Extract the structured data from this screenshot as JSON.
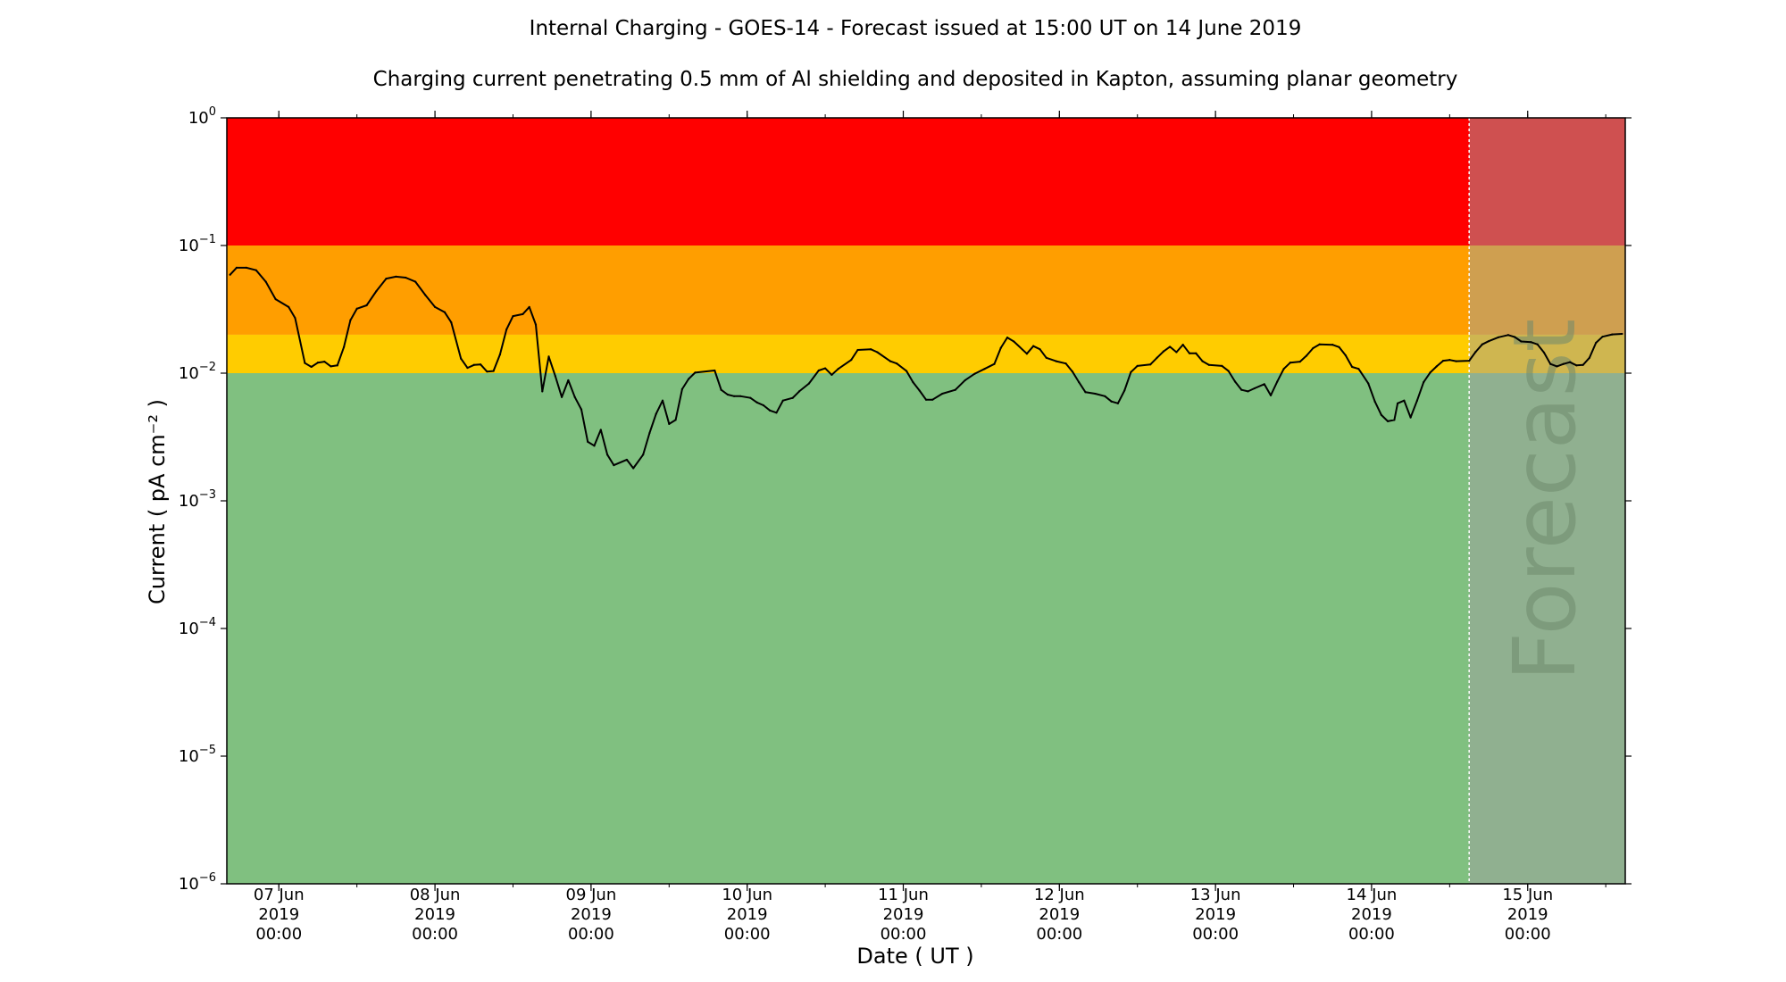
{
  "chart_data": {
    "type": "line",
    "title": "Internal Charging - GOES-14 - Forecast issued at 15:00 UT on 14 June 2019",
    "subtitle": "Charging current penetrating 0.5 mm of Al shielding and deposited in Kapton, assuming planar geometry",
    "xlabel": "Date ( UT )",
    "ylabel": "Current ( pA cm⁻² )",
    "yscale": "log",
    "ylim": [
      1e-06,
      1
    ],
    "xlim": [
      "2019-06-06T16:00",
      "2019-06-15T15:00"
    ],
    "yticks": [
      {
        "value": 1e-06,
        "base": "10",
        "exp": "−6"
      },
      {
        "value": 1e-05,
        "base": "10",
        "exp": "−5"
      },
      {
        "value": 0.0001,
        "base": "10",
        "exp": "−4"
      },
      {
        "value": 0.001,
        "base": "10",
        "exp": "−3"
      },
      {
        "value": 0.01,
        "base": "10",
        "exp": "−2"
      },
      {
        "value": 0.1,
        "base": "10",
        "exp": "−1"
      },
      {
        "value": 1,
        "base": "10",
        "exp": "0"
      }
    ],
    "xticks": [
      {
        "date": "2019-06-07T00:00",
        "lines": [
          "07 Jun",
          "2019",
          "00:00"
        ]
      },
      {
        "date": "2019-06-08T00:00",
        "lines": [
          "08 Jun",
          "2019",
          "00:00"
        ]
      },
      {
        "date": "2019-06-09T00:00",
        "lines": [
          "09 Jun",
          "2019",
          "00:00"
        ]
      },
      {
        "date": "2019-06-10T00:00",
        "lines": [
          "10 Jun",
          "2019",
          "00:00"
        ]
      },
      {
        "date": "2019-06-11T00:00",
        "lines": [
          "11 Jun",
          "2019",
          "00:00"
        ]
      },
      {
        "date": "2019-06-12T00:00",
        "lines": [
          "12 Jun",
          "2019",
          "00:00"
        ]
      },
      {
        "date": "2019-06-13T00:00",
        "lines": [
          "13 Jun",
          "2019",
          "00:00"
        ]
      },
      {
        "date": "2019-06-14T00:00",
        "lines": [
          "14 Jun",
          "2019",
          "00:00"
        ]
      },
      {
        "date": "2019-06-15T00:00",
        "lines": [
          "15 Jun",
          "2019",
          "00:00"
        ]
      }
    ],
    "bands": [
      {
        "from": 0.1,
        "to": 1,
        "color": "#ff0000"
      },
      {
        "from": 0.02,
        "to": 0.1,
        "color": "#ff9e00"
      },
      {
        "from": 0.01,
        "to": 0.02,
        "color": "#ffcc00"
      },
      {
        "from": 1e-06,
        "to": 0.01,
        "color": "#80c080"
      }
    ],
    "forecast": {
      "start": "2019-06-14T15:00",
      "label": "Forecast",
      "overlay_color": "#a0a0a0"
    },
    "series": [
      {
        "color": "#000000",
        "points": [
          [
            "2019-06-06T16:30",
            0.059
          ],
          [
            "2019-06-06T17:30",
            0.067
          ],
          [
            "2019-06-06T19:00",
            0.067
          ],
          [
            "2019-06-06T20:30",
            0.064
          ],
          [
            "2019-06-06T22:00",
            0.052
          ],
          [
            "2019-06-06T23:30",
            0.038
          ],
          [
            "2019-06-07T01:30",
            0.033
          ],
          [
            "2019-06-07T02:30",
            0.027
          ],
          [
            "2019-06-07T04:00",
            0.012
          ],
          [
            "2019-06-07T05:00",
            0.0112
          ],
          [
            "2019-06-07T06:00",
            0.0121
          ],
          [
            "2019-06-07T07:00",
            0.0123
          ],
          [
            "2019-06-07T08:00",
            0.0113
          ],
          [
            "2019-06-07T09:00",
            0.0115
          ],
          [
            "2019-06-07T10:00",
            0.016
          ],
          [
            "2019-06-07T11:00",
            0.026
          ],
          [
            "2019-06-07T12:00",
            0.032
          ],
          [
            "2019-06-07T13:30",
            0.034
          ],
          [
            "2019-06-07T15:00",
            0.044
          ],
          [
            "2019-06-07T16:30",
            0.055
          ],
          [
            "2019-06-07T18:00",
            0.057
          ],
          [
            "2019-06-07T19:30",
            0.056
          ],
          [
            "2019-06-07T21:00",
            0.052
          ],
          [
            "2019-06-07T22:30",
            0.041
          ],
          [
            "2019-06-08T00:00",
            0.033
          ],
          [
            "2019-06-08T01:30",
            0.03
          ],
          [
            "2019-06-08T02:30",
            0.025
          ],
          [
            "2019-06-08T04:00",
            0.013
          ],
          [
            "2019-06-08T05:00",
            0.011
          ],
          [
            "2019-06-08T06:00",
            0.0116
          ],
          [
            "2019-06-08T07:00",
            0.0117
          ],
          [
            "2019-06-08T08:00",
            0.0103
          ],
          [
            "2019-06-08T09:00",
            0.0104
          ],
          [
            "2019-06-08T10:00",
            0.014
          ],
          [
            "2019-06-08T11:00",
            0.022
          ],
          [
            "2019-06-08T12:00",
            0.028
          ],
          [
            "2019-06-08T13:30",
            0.029
          ],
          [
            "2019-06-08T14:30",
            0.033
          ],
          [
            "2019-06-08T15:30",
            0.024
          ],
          [
            "2019-06-08T16:30",
            0.0072
          ],
          [
            "2019-06-08T17:30",
            0.0135
          ],
          [
            "2019-06-08T18:30",
            0.0095
          ],
          [
            "2019-06-08T19:30",
            0.0065
          ],
          [
            "2019-06-08T20:30",
            0.0088
          ],
          [
            "2019-06-08T21:30",
            0.0065
          ],
          [
            "2019-06-08T22:30",
            0.0052
          ],
          [
            "2019-06-08T23:30",
            0.0029
          ],
          [
            "2019-06-09T00:30",
            0.0027
          ],
          [
            "2019-06-09T01:30",
            0.0036
          ],
          [
            "2019-06-09T02:30",
            0.0023
          ],
          [
            "2019-06-09T03:30",
            0.0019
          ],
          [
            "2019-06-09T05:30",
            0.0021
          ],
          [
            "2019-06-09T06:30",
            0.0018
          ],
          [
            "2019-06-09T08:00",
            0.0023
          ],
          [
            "2019-06-09T09:00",
            0.0034
          ],
          [
            "2019-06-09T10:00",
            0.0048
          ],
          [
            "2019-06-09T11:00",
            0.0061
          ],
          [
            "2019-06-09T12:00",
            0.004
          ],
          [
            "2019-06-09T13:00",
            0.0043
          ],
          [
            "2019-06-09T14:00",
            0.0075
          ],
          [
            "2019-06-09T15:00",
            0.009
          ],
          [
            "2019-06-09T16:00",
            0.0101
          ],
          [
            "2019-06-09T19:00",
            0.0105
          ],
          [
            "2019-06-09T20:00",
            0.0074
          ],
          [
            "2019-06-09T21:00",
            0.0068
          ],
          [
            "2019-06-09T22:00",
            0.0066
          ],
          [
            "2019-06-09T23:00",
            0.0066
          ],
          [
            "2019-06-10T00:30",
            0.0064
          ],
          [
            "2019-06-10T01:30",
            0.0059
          ],
          [
            "2019-06-10T02:30",
            0.0056
          ],
          [
            "2019-06-10T03:30",
            0.0051
          ],
          [
            "2019-06-10T04:30",
            0.0049
          ],
          [
            "2019-06-10T05:30",
            0.0061
          ],
          [
            "2019-06-10T07:00",
            0.0064
          ],
          [
            "2019-06-10T08:00",
            0.0072
          ],
          [
            "2019-06-10T09:30",
            0.0083
          ],
          [
            "2019-06-10T11:00",
            0.0105
          ],
          [
            "2019-06-10T12:00",
            0.0109
          ],
          [
            "2019-06-10T13:00",
            0.0097
          ],
          [
            "2019-06-10T14:00",
            0.0108
          ],
          [
            "2019-06-10T16:00",
            0.0127
          ],
          [
            "2019-06-10T17:00",
            0.0152
          ],
          [
            "2019-06-10T19:00",
            0.0154
          ],
          [
            "2019-06-10T20:00",
            0.0146
          ],
          [
            "2019-06-10T22:00",
            0.0124
          ],
          [
            "2019-06-10T23:00",
            0.0119
          ],
          [
            "2019-06-11T00:30",
            0.0104
          ],
          [
            "2019-06-11T01:30",
            0.0085
          ],
          [
            "2019-06-11T02:30",
            0.0073
          ],
          [
            "2019-06-11T03:30",
            0.0062
          ],
          [
            "2019-06-11T04:30",
            0.0062
          ],
          [
            "2019-06-11T06:00",
            0.0069
          ],
          [
            "2019-06-11T08:00",
            0.0074
          ],
          [
            "2019-06-11T09:30",
            0.0088
          ],
          [
            "2019-06-11T11:00",
            0.0099
          ],
          [
            "2019-06-11T12:30",
            0.0108
          ],
          [
            "2019-06-11T14:00",
            0.0118
          ],
          [
            "2019-06-11T15:00",
            0.0158
          ],
          [
            "2019-06-11T16:00",
            0.019
          ],
          [
            "2019-06-11T17:00",
            0.0177
          ],
          [
            "2019-06-11T19:00",
            0.0142
          ],
          [
            "2019-06-11T20:00",
            0.0163
          ],
          [
            "2019-06-11T21:00",
            0.0154
          ],
          [
            "2019-06-11T22:00",
            0.0132
          ],
          [
            "2019-06-11T23:30",
            0.0124
          ],
          [
            "2019-06-12T01:00",
            0.0119
          ],
          [
            "2019-06-12T02:00",
            0.0103
          ],
          [
            "2019-06-12T03:00",
            0.0085
          ],
          [
            "2019-06-12T04:00",
            0.0071
          ],
          [
            "2019-06-12T05:30",
            0.0069
          ],
          [
            "2019-06-12T07:00",
            0.0066
          ],
          [
            "2019-06-12T08:00",
            0.006
          ],
          [
            "2019-06-12T09:00",
            0.0058
          ],
          [
            "2019-06-12T10:00",
            0.0073
          ],
          [
            "2019-06-12T11:00",
            0.0102
          ],
          [
            "2019-06-12T12:00",
            0.0114
          ],
          [
            "2019-06-12T14:00",
            0.0117
          ],
          [
            "2019-06-12T15:00",
            0.0132
          ],
          [
            "2019-06-12T16:00",
            0.0148
          ],
          [
            "2019-06-12T17:00",
            0.0161
          ],
          [
            "2019-06-12T18:00",
            0.0146
          ],
          [
            "2019-06-12T19:00",
            0.0167
          ],
          [
            "2019-06-12T20:00",
            0.0143
          ],
          [
            "2019-06-12T21:00",
            0.0143
          ],
          [
            "2019-06-12T22:00",
            0.0124
          ],
          [
            "2019-06-12T23:00",
            0.0116
          ],
          [
            "2019-06-13T01:00",
            0.0114
          ],
          [
            "2019-06-13T02:00",
            0.0104
          ],
          [
            "2019-06-13T03:00",
            0.0086
          ],
          [
            "2019-06-13T04:00",
            0.0074
          ],
          [
            "2019-06-13T05:00",
            0.0072
          ],
          [
            "2019-06-13T06:00",
            0.0076
          ],
          [
            "2019-06-13T07:30",
            0.0082
          ],
          [
            "2019-06-13T08:30",
            0.0067
          ],
          [
            "2019-06-13T09:30",
            0.0086
          ],
          [
            "2019-06-13T10:30",
            0.0108
          ],
          [
            "2019-06-13T11:30",
            0.0121
          ],
          [
            "2019-06-13T13:00",
            0.0123
          ],
          [
            "2019-06-13T14:00",
            0.0137
          ],
          [
            "2019-06-13T15:00",
            0.0157
          ],
          [
            "2019-06-13T16:00",
            0.0168
          ],
          [
            "2019-06-13T18:00",
            0.0167
          ],
          [
            "2019-06-13T19:00",
            0.016
          ],
          [
            "2019-06-13T20:00",
            0.0138
          ],
          [
            "2019-06-13T21:00",
            0.0112
          ],
          [
            "2019-06-13T22:00",
            0.0108
          ],
          [
            "2019-06-13T23:30",
            0.0083
          ],
          [
            "2019-06-14T00:30",
            0.006
          ],
          [
            "2019-06-14T01:30",
            0.0047
          ],
          [
            "2019-06-14T02:30",
            0.0042
          ],
          [
            "2019-06-14T03:30",
            0.0043
          ],
          [
            "2019-06-14T04:00",
            0.0058
          ],
          [
            "2019-06-14T05:00",
            0.0061
          ],
          [
            "2019-06-14T06:00",
            0.0045
          ],
          [
            "2019-06-14T07:00",
            0.0061
          ],
          [
            "2019-06-14T08:00",
            0.0085
          ],
          [
            "2019-06-14T09:00",
            0.0101
          ],
          [
            "2019-06-14T10:00",
            0.0113
          ],
          [
            "2019-06-14T11:00",
            0.0125
          ],
          [
            "2019-06-14T12:00",
            0.0127
          ],
          [
            "2019-06-14T13:00",
            0.0124
          ],
          [
            "2019-06-14T15:00",
            0.0125
          ],
          [
            "2019-06-14T16:00",
            0.0147
          ],
          [
            "2019-06-14T17:00",
            0.0168
          ],
          [
            "2019-06-14T18:00",
            0.0178
          ],
          [
            "2019-06-14T19:30",
            0.0191
          ],
          [
            "2019-06-14T21:00",
            0.0199
          ],
          [
            "2019-06-14T22:00",
            0.0192
          ],
          [
            "2019-06-14T23:00",
            0.0177
          ],
          [
            "2019-06-15T00:30",
            0.0175
          ],
          [
            "2019-06-15T01:30",
            0.0168
          ],
          [
            "2019-06-15T02:30",
            0.0145
          ],
          [
            "2019-06-15T03:30",
            0.0118
          ],
          [
            "2019-06-15T04:30",
            0.0113
          ],
          [
            "2019-06-15T05:30",
            0.0118
          ],
          [
            "2019-06-15T06:30",
            0.0122
          ],
          [
            "2019-06-15T07:30",
            0.0115
          ],
          [
            "2019-06-15T08:30",
            0.0116
          ],
          [
            "2019-06-15T09:30",
            0.0132
          ],
          [
            "2019-06-15T10:30",
            0.0173
          ],
          [
            "2019-06-15T11:30",
            0.0193
          ],
          [
            "2019-06-15T13:00",
            0.0201
          ],
          [
            "2019-06-15T14:30",
            0.0203
          ]
        ]
      }
    ]
  }
}
